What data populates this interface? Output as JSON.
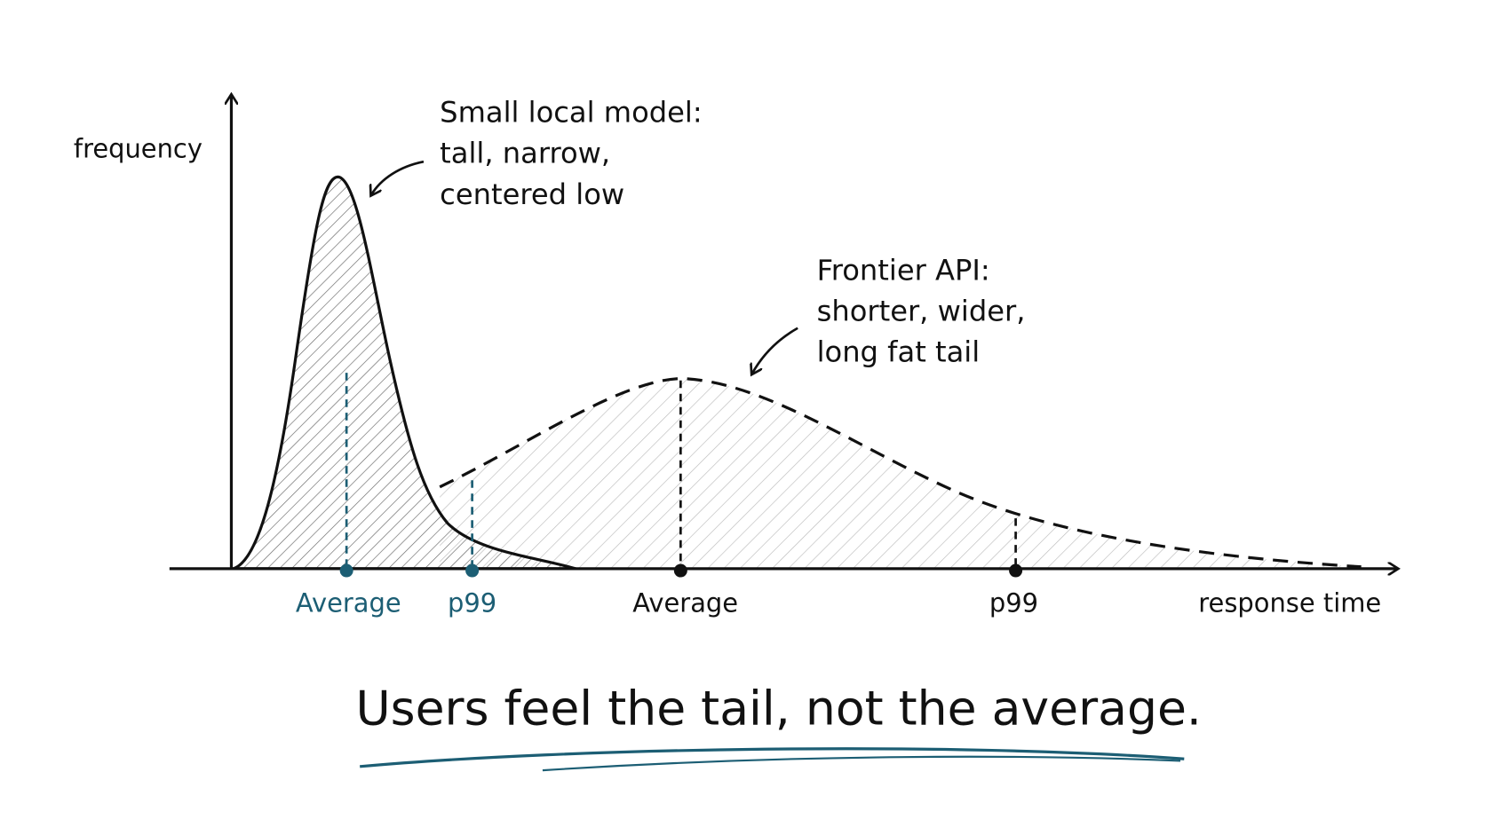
{
  "axes": {
    "y_label": "frequency",
    "x_label": "response time"
  },
  "annotations": [
    {
      "lines": [
        "Small local model:",
        "tall, narrow,",
        "centered low"
      ]
    },
    {
      "lines": [
        "Frontier API:",
        "shorter, wider,",
        "long fat tail"
      ]
    }
  ],
  "markers": [
    {
      "label": "Average"
    },
    {
      "label": "p99"
    },
    {
      "label": "Average"
    },
    {
      "label": "p99"
    }
  ],
  "caption": "Users feel the tail, not the average."
}
